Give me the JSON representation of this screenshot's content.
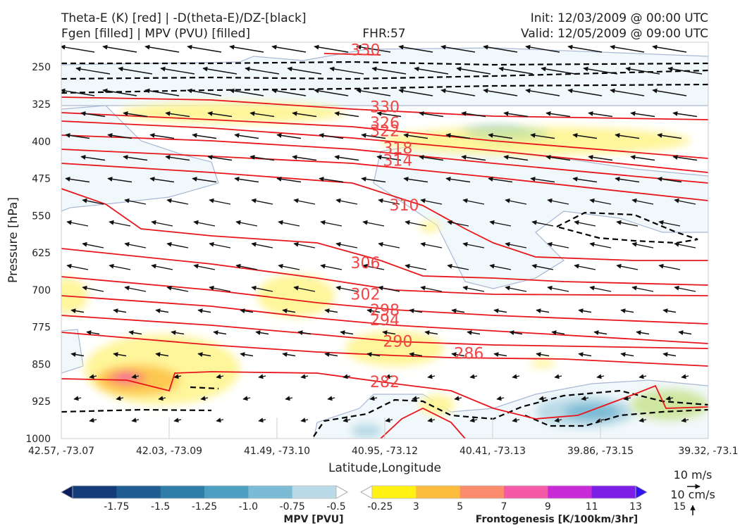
{
  "header": {
    "title_line1": "Theta-E (K) [red] | -D(theta-E)/DZ-[black]",
    "title_line2": "Fgen [filled] | MPV (PVU) [filled]",
    "fhr": "FHR:57",
    "init": "Init: 12/03/2009 @ 00:00 UTC",
    "valid": "Valid: 12/05/2009 @ 09:00 UTC"
  },
  "chart_data": {
    "type": "cross-section",
    "xlabel": "Latitude,Longitude",
    "ylabel": "Pressure [hPa]",
    "x_ticks": [
      "42.57, -73.07",
      "42.03, -73.09",
      "41.49, -73.10",
      "40.95, -73.12",
      "40.41, -73.13",
      "39.86, -73.15",
      "39.32, -73.1"
    ],
    "y_ticks": [
      250,
      325,
      400,
      475,
      550,
      625,
      700,
      775,
      850,
      925,
      1000
    ],
    "ylim": [
      1000,
      200
    ],
    "theta_e_labels": [
      {
        "value": "330",
        "x": 0.47,
        "p": 215
      },
      {
        "value": "330",
        "x": 0.5,
        "p": 330
      },
      {
        "value": "326",
        "x": 0.5,
        "p": 362
      },
      {
        "value": "322",
        "x": 0.5,
        "p": 378
      },
      {
        "value": "318",
        "x": 0.52,
        "p": 413
      },
      {
        "value": "314",
        "x": 0.52,
        "p": 438
      },
      {
        "value": "310",
        "x": 0.53,
        "p": 528
      },
      {
        "value": "306",
        "x": 0.47,
        "p": 645
      },
      {
        "value": "302",
        "x": 0.47,
        "p": 708
      },
      {
        "value": "298",
        "x": 0.5,
        "p": 740
      },
      {
        "value": "294",
        "x": 0.5,
        "p": 760
      },
      {
        "value": "290",
        "x": 0.52,
        "p": 803
      },
      {
        "value": "286",
        "x": 0.63,
        "p": 827
      },
      {
        "value": "282",
        "x": 0.5,
        "p": 885
      }
    ],
    "mpv_colorbar": {
      "label": "MPV [PVU]",
      "ticks": [
        "-1.75",
        "-1.5",
        "-1.25",
        "-1.0",
        "-0.75",
        "-0.5",
        "-0.25"
      ],
      "colors": [
        "#0a1d5e",
        "#143c78",
        "#1f5c92",
        "#2e7ea9",
        "#4d9fc2",
        "#7cbbd5",
        "#b9dae6",
        "#ffffff"
      ]
    },
    "fgen_colorbar": {
      "label": "Frontogenesis [K/100km/3hr]",
      "ticks": [
        "3",
        "5",
        "7",
        "9",
        "11",
        "13",
        "15"
      ],
      "colors": [
        "#ffffff",
        "#fff212",
        "#fdbd3c",
        "#fb8c6e",
        "#f45aa8",
        "#c82bd6",
        "#7d1ee6",
        "#3314f0"
      ]
    },
    "vector_key": {
      "horizontal": "10 m/s",
      "vertical": "10 cm/s"
    }
  }
}
